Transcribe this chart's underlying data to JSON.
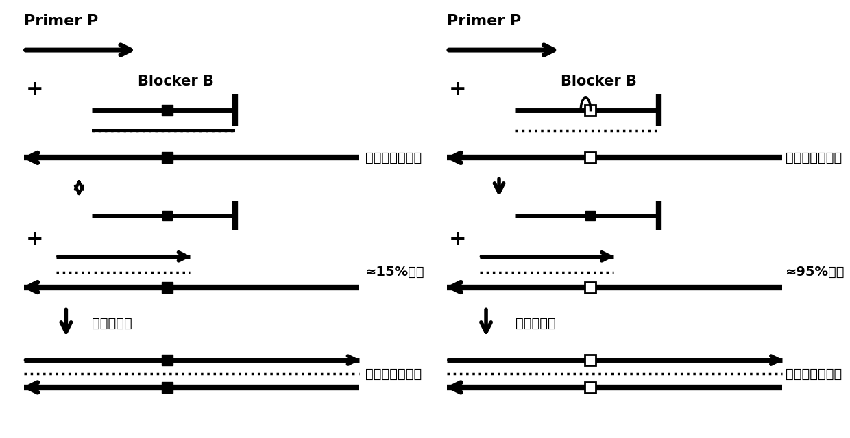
{
  "bg_color": "#ffffff",
  "text_color": "#000000",
  "left_panel": {
    "primer_label": "Primer P",
    "blocker_label": "Blocker B",
    "sample_label": "野生型核酸样本",
    "yield_label": "≈15%产量",
    "polymerase_label": "聚合酶延伸",
    "product_label": "野生型扩增产物"
  },
  "right_panel": {
    "primer_label": "Primer P",
    "blocker_label": "Blocker B",
    "sample_label": "突变型核酸样本",
    "yield_label": "≈95%产量",
    "polymerase_label": "聚合酶延伸",
    "product_label": "突变型扩增产物"
  }
}
